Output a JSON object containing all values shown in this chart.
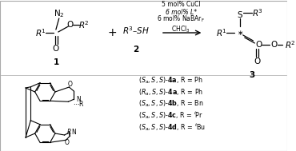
{
  "figsize": [
    3.7,
    1.89
  ],
  "dpi": 100,
  "bg": "#ffffff",
  "border": "#aaaaaa",
  "black": "#000000",
  "conditions": [
    "5 mol% CuCl",
    "6 mol% L*",
    "6 mol% NaBAr$_\\mathrm{F}$",
    "CHCl$_3$"
  ],
  "product_lines": [
    "$(S_a, S, S)$-$\\mathbf{4a}$, R = Ph",
    "$(R_a, S, S)$-$\\mathbf{4a}$, R = Ph",
    "$(S_a, S, S)$-$\\mathbf{4b}$, R = Bn",
    "$(S_a, S, S)$-$\\mathbf{4c}$, R = $^i$Pr",
    "$(S_a, S, S)$-$\\mathbf{4d}$, R = $^t$Bu"
  ]
}
